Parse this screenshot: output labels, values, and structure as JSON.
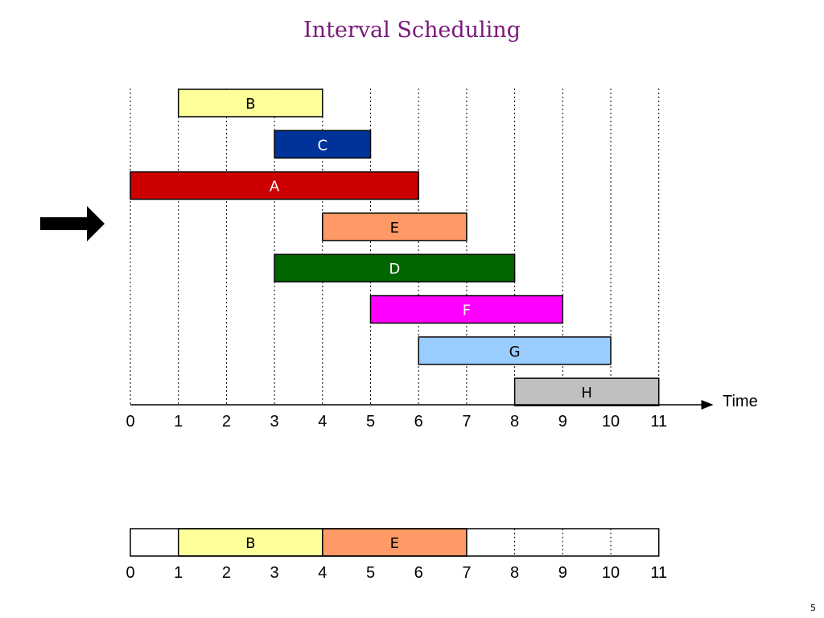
{
  "title": "Interval Scheduling",
  "page_number": "5",
  "axis": {
    "label": "Time",
    "ticks": [
      "0",
      "1",
      "2",
      "3",
      "4",
      "5",
      "6",
      "7",
      "8",
      "9",
      "10",
      "11"
    ],
    "min": 0,
    "max": 11
  },
  "jobs": [
    {
      "name": "B",
      "start": 1,
      "end": 4,
      "color": "#ffff99",
      "text_color": "#000000"
    },
    {
      "name": "C",
      "start": 3,
      "end": 5,
      "color": "#003399",
      "text_color": "#ffffff"
    },
    {
      "name": "A",
      "start": 0,
      "end": 6,
      "color": "#cc0000",
      "text_color": "#ffffff"
    },
    {
      "name": "E",
      "start": 4,
      "end": 7,
      "color": "#ff9966",
      "text_color": "#000000"
    },
    {
      "name": "D",
      "start": 3,
      "end": 8,
      "color": "#006600",
      "text_color": "#ffffff"
    },
    {
      "name": "F",
      "start": 5,
      "end": 9,
      "color": "#ff00ff",
      "text_color": "#ffffff"
    },
    {
      "name": "G",
      "start": 6,
      "end": 10,
      "color": "#99ccff",
      "text_color": "#000000"
    },
    {
      "name": "H",
      "start": 8,
      "end": 11,
      "color": "#c0c0c0",
      "text_color": "#000000"
    }
  ],
  "current_job": "E",
  "selected": [
    {
      "name": "B",
      "start": 1,
      "end": 4,
      "color": "#ffff99",
      "text_color": "#000000"
    },
    {
      "name": "E",
      "start": 4,
      "end": 7,
      "color": "#ff9966",
      "text_color": "#000000"
    }
  ],
  "selected_ticks": [
    "0",
    "1",
    "2",
    "3",
    "4",
    "5",
    "6",
    "7",
    "8",
    "9",
    "10",
    "11"
  ]
}
